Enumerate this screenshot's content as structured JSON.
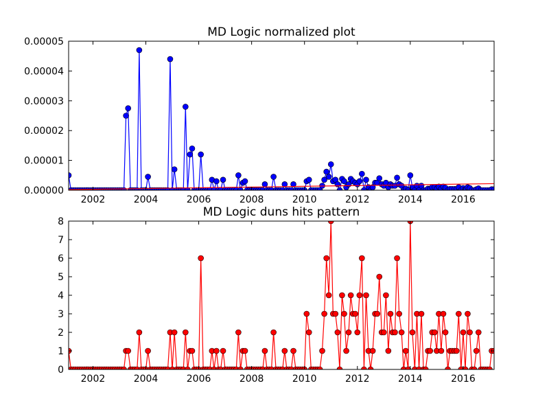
{
  "chart_data": [
    {
      "type": "line",
      "title": "MD Logic normalized plot",
      "x": [
        2001.08,
        2001.17,
        2001.25,
        2001.33,
        2001.42,
        2001.5,
        2001.58,
        2001.67,
        2001.75,
        2001.83,
        2001.92,
        2002,
        2002.08,
        2002.17,
        2002.25,
        2002.33,
        2002.42,
        2002.5,
        2002.58,
        2002.67,
        2002.75,
        2002.83,
        2002.92,
        2003,
        2003.08,
        2003.17,
        2003.25,
        2003.33,
        2003.42,
        2003.5,
        2003.58,
        2003.67,
        2003.75,
        2003.83,
        2003.92,
        2004,
        2004.08,
        2004.17,
        2004.25,
        2004.33,
        2004.42,
        2004.5,
        2004.58,
        2004.67,
        2004.75,
        2004.83,
        2004.92,
        2005,
        2005.08,
        2005.17,
        2005.25,
        2005.33,
        2005.42,
        2005.5,
        2005.58,
        2005.67,
        2005.75,
        2005.83,
        2005.92,
        2006,
        2006.08,
        2006.17,
        2006.25,
        2006.33,
        2006.42,
        2006.5,
        2006.58,
        2006.67,
        2006.75,
        2006.83,
        2006.92,
        2007,
        2007.08,
        2007.17,
        2007.25,
        2007.33,
        2007.42,
        2007.5,
        2007.58,
        2007.67,
        2007.75,
        2007.83,
        2007.92,
        2008,
        2008.08,
        2008.17,
        2008.25,
        2008.33,
        2008.42,
        2008.5,
        2008.58,
        2008.67,
        2008.75,
        2008.83,
        2008.92,
        2009,
        2009.08,
        2009.17,
        2009.25,
        2009.33,
        2009.42,
        2009.5,
        2009.58,
        2009.67,
        2009.75,
        2009.83,
        2009.92,
        2010,
        2010.08,
        2010.17,
        2010.25,
        2010.33,
        2010.42,
        2010.5,
        2010.58,
        2010.67,
        2010.75,
        2010.83,
        2010.92,
        2011,
        2011.08,
        2011.17,
        2011.25,
        2011.33,
        2011.42,
        2011.5,
        2011.58,
        2011.67,
        2011.75,
        2011.83,
        2011.92,
        2012,
        2012.08,
        2012.17,
        2012.25,
        2012.33,
        2012.42,
        2012.5,
        2012.58,
        2012.67,
        2012.75,
        2012.83,
        2012.92,
        2013,
        2013.08,
        2013.17,
        2013.25,
        2013.33,
        2013.42,
        2013.5,
        2013.58,
        2013.67,
        2013.75,
        2013.83,
        2013.92,
        2014,
        2014.08,
        2014.17,
        2014.25,
        2014.33,
        2014.42,
        2014.5,
        2014.58,
        2014.67,
        2014.75,
        2014.83,
        2014.92,
        2015,
        2015.08,
        2015.17,
        2015.25,
        2015.33,
        2015.42,
        2015.5,
        2015.58,
        2015.67,
        2015.75,
        2015.83,
        2015.92,
        2016,
        2016.08,
        2016.17,
        2016.25,
        2016.33,
        2016.42,
        2016.5,
        2016.58,
        2016.67,
        2016.75,
        2016.83,
        2016.92,
        2017,
        2017.08,
        2017.17
      ],
      "xlim": [
        2001.08,
        2017.17
      ],
      "xticks": [
        2002,
        2004,
        2006,
        2008,
        2010,
        2012,
        2014,
        2016
      ],
      "ylim": [
        0,
        5e-05
      ],
      "yticks": [
        {
          "value": 0,
          "label": "0.00000"
        },
        {
          "value": 1e-05,
          "label": "0.00001"
        },
        {
          "value": 2e-05,
          "label": "0.00002"
        },
        {
          "value": 3e-05,
          "label": "0.00003"
        },
        {
          "value": 4e-05,
          "label": "0.00004"
        },
        {
          "value": 5e-05,
          "label": "0.00005"
        }
      ],
      "series": [
        {
          "color": "#0000ff",
          "markers": true,
          "values": [
            5e-06,
            0,
            0,
            0,
            0,
            0,
            0,
            0,
            0,
            0,
            0,
            0,
            0,
            0,
            0,
            0,
            0,
            0,
            0,
            0,
            0,
            0,
            0,
            0,
            0,
            0,
            2.5e-05,
            2.75e-05,
            0,
            0,
            0,
            0,
            4.7e-05,
            0,
            0,
            0,
            4.5e-06,
            0,
            0,
            0,
            0,
            0,
            0,
            0,
            0,
            0,
            4.4e-05,
            0,
            7e-06,
            0,
            0,
            0,
            0,
            2.8e-05,
            0,
            1.2e-05,
            1.4e-05,
            0,
            0,
            0,
            1.2e-05,
            0,
            0,
            0,
            0,
            3.5e-06,
            0,
            3e-06,
            0,
            0,
            3.5e-06,
            0,
            0,
            0,
            0,
            0,
            0,
            5e-06,
            0,
            2.5e-06,
            3e-06,
            0,
            0,
            0,
            0,
            0,
            0,
            0,
            0,
            2e-06,
            0,
            0,
            0,
            4.5e-06,
            0,
            0,
            0,
            0,
            2e-06,
            0,
            0,
            0,
            2e-06,
            0,
            0,
            0,
            0,
            0,
            3e-06,
            3.5e-06,
            0,
            0,
            0,
            0,
            0,
            1.5e-06,
            3.5e-06,
            6.2e-06,
            4.5e-06,
            8.7e-06,
            3e-06,
            3.5e-06,
            2e-06,
            0,
            3.8e-06,
            3e-06,
            1e-06,
            2e-06,
            3.8e-06,
            3e-06,
            2.5e-06,
            2e-06,
            3e-06,
            5.5e-06,
            0,
            3.5e-06,
            1e-06,
            0,
            1e-06,
            2.5e-06,
            2.5e-06,
            4e-06,
            2e-06,
            1.5e-06,
            2.5e-06,
            1e-06,
            2e-06,
            1.5e-06,
            1.5e-06,
            4.2e-06,
            2e-06,
            1.5e-06,
            0,
            5e-07,
            0,
            5e-06,
            1e-06,
            0,
            1.5e-06,
            0,
            1.5e-06,
            0,
            0,
            5e-07,
            5e-07,
            1e-06,
            1e-06,
            5e-07,
            1.2e-06,
            5e-07,
            1.2e-06,
            8e-07,
            0,
            4e-07,
            4e-07,
            4e-07,
            4e-07,
            1e-06,
            0,
            7e-07,
            0,
            1e-06,
            7e-07,
            0,
            0,
            3e-07,
            6e-07,
            0,
            0,
            0,
            0,
            0,
            3e-07,
            3e-07
          ]
        },
        {
          "color": "#ff0000",
          "markers": false,
          "x": [
            2001.08,
            2017.17
          ],
          "values": [
            2e-07,
            2.2e-06
          ]
        }
      ]
    },
    {
      "type": "line",
      "title": "MD Logic duns hits pattern",
      "x": [
        2001.08,
        2001.17,
        2001.25,
        2001.33,
        2001.42,
        2001.5,
        2001.58,
        2001.67,
        2001.75,
        2001.83,
        2001.92,
        2002,
        2002.08,
        2002.17,
        2002.25,
        2002.33,
        2002.42,
        2002.5,
        2002.58,
        2002.67,
        2002.75,
        2002.83,
        2002.92,
        2003,
        2003.08,
        2003.17,
        2003.25,
        2003.33,
        2003.42,
        2003.5,
        2003.58,
        2003.67,
        2003.75,
        2003.83,
        2003.92,
        2004,
        2004.08,
        2004.17,
        2004.25,
        2004.33,
        2004.42,
        2004.5,
        2004.58,
        2004.67,
        2004.75,
        2004.83,
        2004.92,
        2005,
        2005.08,
        2005.17,
        2005.25,
        2005.33,
        2005.42,
        2005.5,
        2005.58,
        2005.67,
        2005.75,
        2005.83,
        2005.92,
        2006,
        2006.08,
        2006.17,
        2006.25,
        2006.33,
        2006.42,
        2006.5,
        2006.58,
        2006.67,
        2006.75,
        2006.83,
        2006.92,
        2007,
        2007.08,
        2007.17,
        2007.25,
        2007.33,
        2007.42,
        2007.5,
        2007.58,
        2007.67,
        2007.75,
        2007.83,
        2007.92,
        2008,
        2008.08,
        2008.17,
        2008.25,
        2008.33,
        2008.42,
        2008.5,
        2008.58,
        2008.67,
        2008.75,
        2008.83,
        2008.92,
        2009,
        2009.08,
        2009.17,
        2009.25,
        2009.33,
        2009.42,
        2009.5,
        2009.58,
        2009.67,
        2009.75,
        2009.83,
        2009.92,
        2010,
        2010.08,
        2010.17,
        2010.25,
        2010.33,
        2010.42,
        2010.5,
        2010.58,
        2010.67,
        2010.75,
        2010.83,
        2010.92,
        2011,
        2011.08,
        2011.17,
        2011.25,
        2011.33,
        2011.42,
        2011.5,
        2011.58,
        2011.67,
        2011.75,
        2011.83,
        2011.92,
        2012,
        2012.08,
        2012.17,
        2012.25,
        2012.33,
        2012.42,
        2012.5,
        2012.58,
        2012.67,
        2012.75,
        2012.83,
        2012.92,
        2013,
        2013.08,
        2013.17,
        2013.25,
        2013.33,
        2013.42,
        2013.5,
        2013.58,
        2013.67,
        2013.75,
        2013.83,
        2013.92,
        2014,
        2014.08,
        2014.17,
        2014.25,
        2014.33,
        2014.42,
        2014.5,
        2014.58,
        2014.67,
        2014.75,
        2014.83,
        2014.92,
        2015,
        2015.08,
        2015.17,
        2015.25,
        2015.33,
        2015.42,
        2015.5,
        2015.58,
        2015.67,
        2015.75,
        2015.83,
        2015.92,
        2016,
        2016.08,
        2016.17,
        2016.25,
        2016.33,
        2016.42,
        2016.5,
        2016.58,
        2016.67,
        2016.75,
        2016.83,
        2016.92,
        2017,
        2017.08,
        2017.17
      ],
      "xlim": [
        2001.08,
        2017.17
      ],
      "xticks": [
        2002,
        2004,
        2006,
        2008,
        2010,
        2012,
        2014,
        2016
      ],
      "ylim": [
        0,
        8
      ],
      "yticks": [
        0,
        1,
        2,
        3,
        4,
        5,
        6,
        7,
        8
      ],
      "series": [
        {
          "color": "#ff0000",
          "markers": true,
          "values": [
            1,
            0,
            0,
            0,
            0,
            0,
            0,
            0,
            0,
            0,
            0,
            0,
            0,
            0,
            0,
            0,
            0,
            0,
            0,
            0,
            0,
            0,
            0,
            0,
            0,
            0,
            1,
            1,
            0,
            0,
            0,
            0,
            2,
            0,
            0,
            0,
            1,
            0,
            0,
            0,
            0,
            0,
            0,
            0,
            0,
            0,
            2,
            0,
            2,
            0,
            0,
            0,
            0,
            2,
            0,
            1,
            1,
            0,
            0,
            0,
            6,
            0,
            0,
            0,
            0,
            1,
            0,
            1,
            0,
            0,
            1,
            0,
            0,
            0,
            0,
            0,
            0,
            2,
            0,
            1,
            1,
            0,
            0,
            0,
            0,
            0,
            0,
            0,
            0,
            1,
            0,
            0,
            0,
            2,
            0,
            0,
            0,
            0,
            1,
            0,
            0,
            0,
            1,
            0,
            0,
            0,
            0,
            0,
            3,
            2,
            0,
            0,
            0,
            0,
            0,
            1,
            3,
            6,
            4,
            8,
            3,
            3,
            2,
            0,
            4,
            3,
            1,
            2,
            4,
            3,
            3,
            2,
            4,
            6,
            0,
            4,
            1,
            0,
            1,
            3,
            3,
            5,
            2,
            2,
            4,
            1,
            3,
            2,
            2,
            6,
            3,
            2,
            0,
            1,
            0,
            8,
            2,
            0,
            3,
            0,
            3,
            0,
            0,
            1,
            1,
            2,
            2,
            1,
            3,
            1,
            3,
            2,
            0,
            1,
            1,
            1,
            1,
            3,
            0,
            2,
            0,
            3,
            2,
            0,
            0,
            1,
            2,
            0,
            0,
            0,
            0,
            0,
            1,
            1
          ]
        }
      ]
    }
  ]
}
